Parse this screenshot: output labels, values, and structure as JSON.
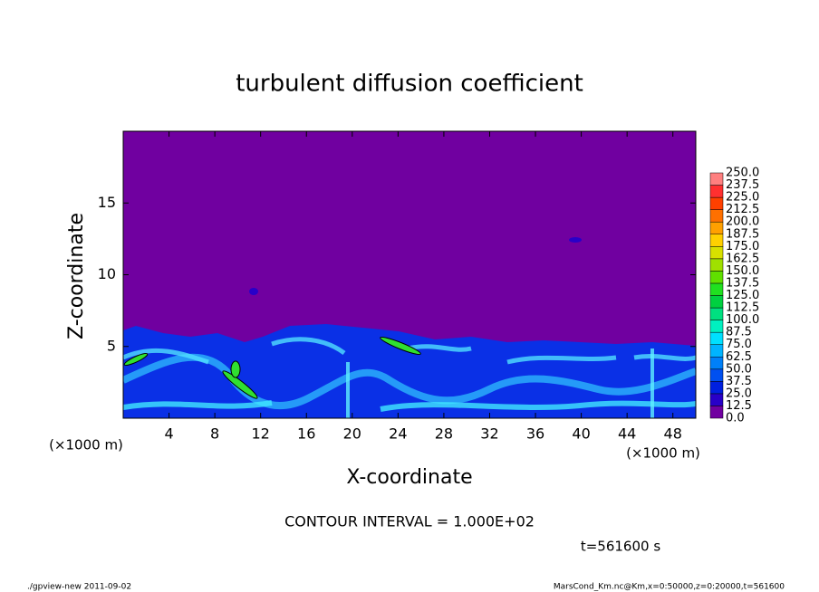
{
  "chart_data": {
    "type": "contour",
    "title": "turbulent diffusion coefficient",
    "x_label": "X-coordinate",
    "y_label": "Z-coordinate",
    "x_unit": "(×1000 m)",
    "y_unit": "(×1000 m)",
    "xlim": [
      0,
      50
    ],
    "xticks": [
      4,
      8,
      12,
      16,
      20,
      24,
      28,
      32,
      36,
      40,
      44,
      48
    ],
    "ylim": [
      0,
      20
    ],
    "yticks": [
      5,
      10,
      15
    ],
    "levels": [
      {
        "value": 0,
        "label": "0.0"
      },
      {
        "value": 12.5,
        "label": "12.5"
      },
      {
        "value": 25,
        "label": "25.0"
      },
      {
        "value": 37.5,
        "label": "37.5"
      },
      {
        "value": 50,
        "label": "50.0"
      },
      {
        "value": 62.5,
        "label": "62.5"
      },
      {
        "value": 75,
        "label": "75.0"
      },
      {
        "value": 87.5,
        "label": "87.5"
      },
      {
        "value": 100,
        "label": "100.0"
      },
      {
        "value": 112.5,
        "label": "112.5"
      },
      {
        "value": 125,
        "label": "125.0"
      },
      {
        "value": 137.5,
        "label": "137.5"
      },
      {
        "value": 150,
        "label": "150.0"
      },
      {
        "value": 162.5,
        "label": "162.5"
      },
      {
        "value": 175,
        "label": "175.0"
      },
      {
        "value": 187.5,
        "label": "187.5"
      },
      {
        "value": 200,
        "label": "200.0"
      },
      {
        "value": 212.5,
        "label": "212.5"
      },
      {
        "value": 225,
        "label": "225.0"
      },
      {
        "value": 237.5,
        "label": "237.5"
      },
      {
        "value": 250,
        "label": "250.0"
      }
    ],
    "colors": [
      "#7000a0",
      "#2800c8",
      "#0020e0",
      "#0050f0",
      "#0080f8",
      "#00b4ff",
      "#00e0ff",
      "#00f0c0",
      "#00e080",
      "#00d040",
      "#20e020",
      "#60e000",
      "#a0e000",
      "#d8e000",
      "#ffd000",
      "#ffa000",
      "#ff7000",
      "#ff4000",
      "#ff3030",
      "#ff8080"
    ],
    "annotation": "CONTOUR INTERVAL = 1.000E+02",
    "time_label": "t=561600 s",
    "footer_left": "./gpview-new  2011-09-02",
    "footer_right": "MarsCond_Km.nc@Km,x=0:50000,z=0:20000,t=561600"
  }
}
